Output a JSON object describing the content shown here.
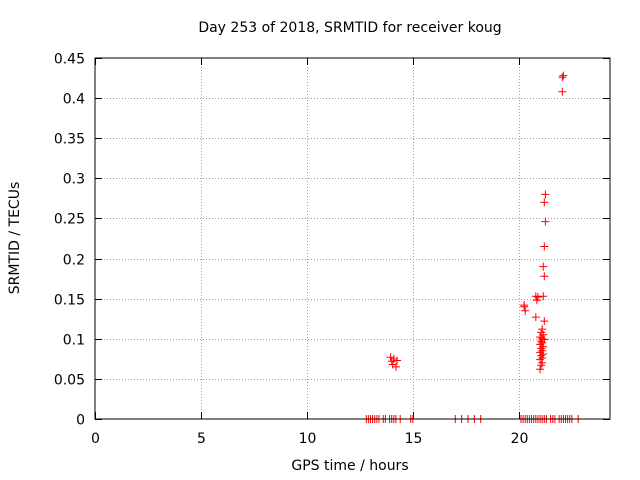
{
  "chart_data": {
    "type": "scatter",
    "title": "Day 253 of 2018, SRMTID for receiver koug",
    "xlabel": "GPS time / hours",
    "ylabel": "SRMTID / TECUs",
    "xlim": [
      0,
      24.3
    ],
    "ylim": [
      0,
      0.45
    ],
    "xticks": [
      0,
      5,
      10,
      15,
      20
    ],
    "xtick_labels": [
      "0",
      "5",
      "10",
      "15",
      "20"
    ],
    "yticks": [
      0,
      0.05,
      0.1,
      0.15,
      0.2,
      0.25,
      0.3,
      0.35,
      0.4,
      0.45
    ],
    "ytick_labels": [
      "0",
      "0.05",
      "0.1",
      "0.15",
      "0.2",
      "0.25",
      "0.3",
      "0.35",
      "0.4",
      "0.45"
    ],
    "grid": true,
    "marker": "+",
    "color": "#ff0000",
    "series": [
      {
        "name": "SRMTID",
        "x": [
          12.8,
          12.9,
          13.0,
          13.1,
          13.2,
          13.3,
          13.4,
          13.6,
          13.7,
          13.9,
          14.0,
          14.1,
          14.2,
          14.4,
          14.9,
          15.0,
          17.0,
          17.3,
          17.6,
          17.9,
          18.2,
          20.1,
          20.2,
          20.3,
          20.4,
          20.5,
          20.6,
          20.7,
          20.8,
          20.9,
          21.0,
          21.1,
          21.2,
          21.3,
          21.5,
          21.6,
          21.7,
          21.9,
          22.0,
          22.1,
          22.2,
          22.3,
          22.4,
          22.5,
          22.8,
          13.95,
          14.0,
          14.05,
          14.1,
          14.2,
          14.25,
          20.25,
          20.3,
          20.25,
          20.8,
          20.85,
          20.9,
          20.8,
          21.0,
          21.05,
          21.1,
          21.0,
          21.1,
          21.05,
          21.15,
          21.0,
          21.1,
          21.05,
          21.15,
          21.0,
          21.1,
          21.05,
          21.2,
          21.1,
          21.0,
          21.15,
          21.05,
          21.1,
          21.2,
          21.15,
          21.2,
          21.15,
          21.2,
          21.25,
          21.2,
          21.25,
          22.05,
          22.1,
          22.05
        ],
        "y": [
          0,
          0,
          0,
          0,
          0,
          0,
          0,
          0,
          0,
          0,
          0,
          0,
          0,
          0,
          0,
          0,
          0,
          0,
          0,
          0,
          0,
          0,
          0,
          0,
          0,
          0,
          0,
          0,
          0,
          0,
          0,
          0,
          0,
          0,
          0,
          0,
          0,
          0,
          0,
          0,
          0,
          0,
          0,
          0,
          0,
          0.077,
          0.072,
          0.068,
          0.075,
          0.065,
          0.073,
          0.142,
          0.135,
          0.14,
          0.153,
          0.148,
          0.152,
          0.127,
          0.062,
          0.067,
          0.07,
          0.074,
          0.076,
          0.079,
          0.081,
          0.083,
          0.085,
          0.088,
          0.09,
          0.093,
          0.095,
          0.097,
          0.099,
          0.1,
          0.102,
          0.105,
          0.108,
          0.112,
          0.122,
          0.153,
          0.178,
          0.19,
          0.215,
          0.246,
          0.27,
          0.28,
          0.408,
          0.428,
          0.426
        ]
      }
    ]
  }
}
